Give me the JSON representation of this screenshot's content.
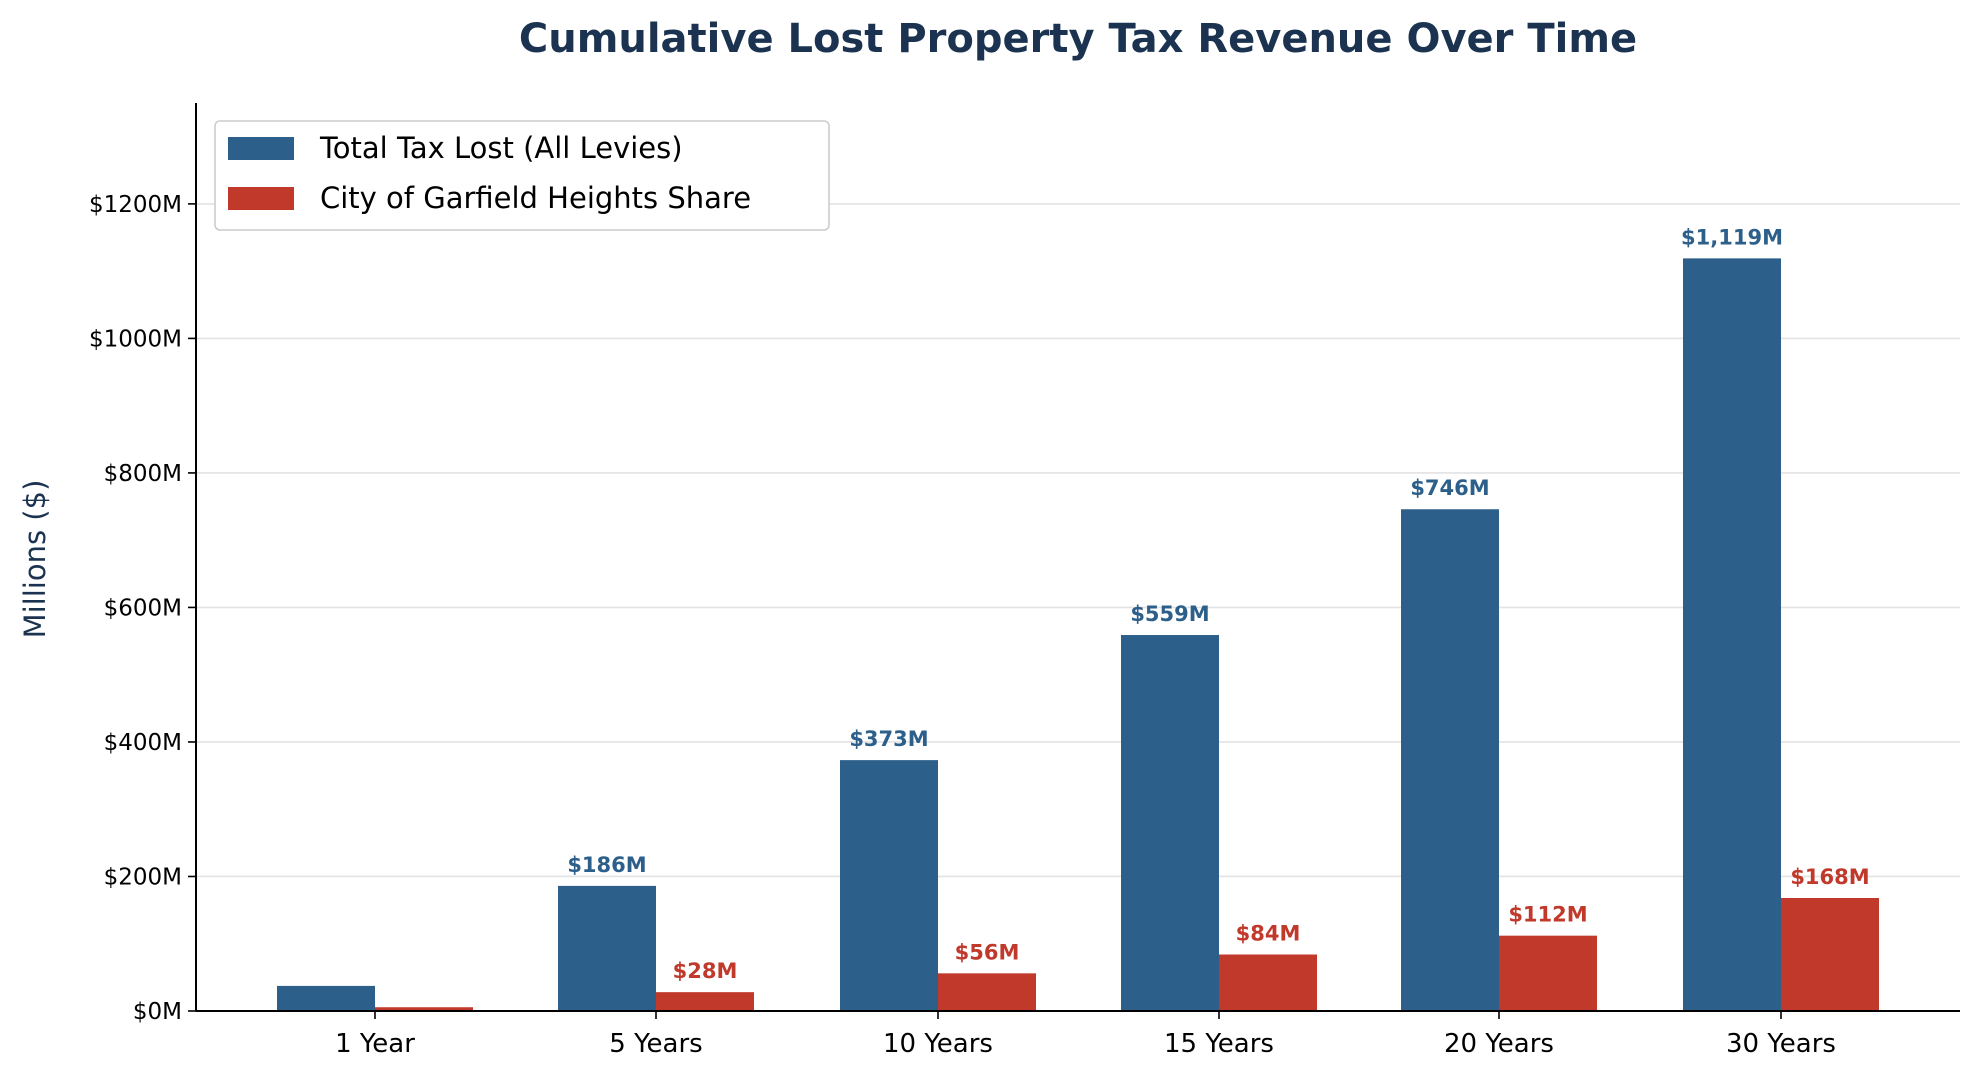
{
  "chart_data": {
    "type": "bar",
    "title": "Cumulative Lost Property Tax Revenue Over Time",
    "xlabel": "",
    "ylabel": "Millions ($)",
    "ylim": [
      0,
      1350
    ],
    "yticks": [
      0,
      200,
      400,
      600,
      800,
      1000,
      1200
    ],
    "ytick_labels": [
      "$0M",
      "$200M",
      "$400M",
      "$600M",
      "$800M",
      "$1000M",
      "$1200M"
    ],
    "grid": "horizontal",
    "legend_position": "top-left",
    "categories": [
      "1 Year",
      "5 Years",
      "10 Years",
      "15 Years",
      "20 Years",
      "30 Years"
    ],
    "series": [
      {
        "name": "Total Tax Lost (All Levies)",
        "color": "#2c5f8a",
        "values": [
          37.3,
          186,
          373,
          559,
          746,
          1119
        ],
        "data_labels": [
          "",
          "$186M",
          "$373M",
          "$559M",
          "$746M",
          "$1,119M"
        ]
      },
      {
        "name": "City of Garfield Heights Share",
        "color": "#c0392b",
        "values": [
          5.6,
          28,
          56,
          84,
          112,
          168
        ],
        "data_labels": [
          "",
          "$28M",
          "$56M",
          "$84M",
          "$112M",
          "$168M"
        ]
      }
    ],
    "title_color": "#1b3350"
  }
}
